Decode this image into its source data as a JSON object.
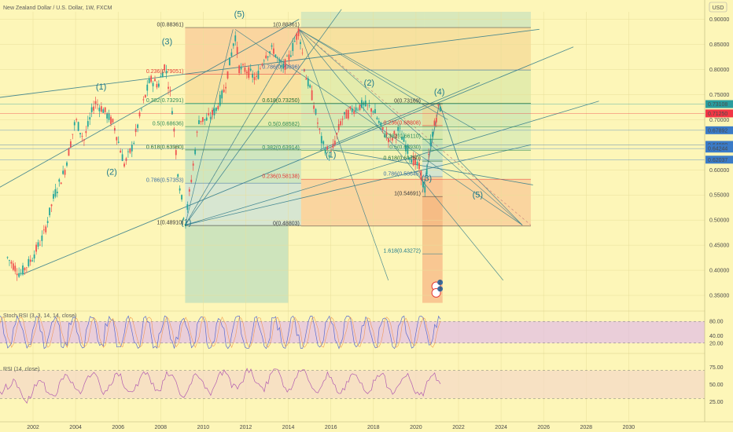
{
  "header": {
    "title": "New Zealand Dollar / U.S. Dollar, 1W, FXCM"
  },
  "currency_badge": "USD",
  "chart_data": [
    {
      "type": "candlestick-line",
      "title": "New Zealand Dollar / U.S. Dollar, 1W, FXCM",
      "x_ticks": [
        "2002",
        "2004",
        "2006",
        "2008",
        "2010",
        "2012",
        "2014",
        "2016",
        "2018",
        "2020",
        "2022",
        "2024",
        "2026",
        "2028",
        "2030"
      ],
      "y_ticks": [
        "0.90000",
        "0.85000",
        "0.80000",
        "0.75000",
        "0.70000",
        "0.65000",
        "0.60000",
        "0.55000",
        "0.50000",
        "0.45000",
        "0.40000",
        "0.35000"
      ],
      "ylim": [
        0.325,
        0.915
      ],
      "price_series": [
        [
          2000.8,
          0.425
        ],
        [
          2001.4,
          0.392
        ],
        [
          2001.9,
          0.42
        ],
        [
          2002.5,
          0.47
        ],
        [
          2003.0,
          0.55
        ],
        [
          2003.5,
          0.6
        ],
        [
          2004.0,
          0.7
        ],
        [
          2004.4,
          0.66
        ],
        [
          2004.9,
          0.735
        ],
        [
          2005.3,
          0.72
        ],
        [
          2005.8,
          0.69
        ],
        [
          2006.3,
          0.61
        ],
        [
          2006.7,
          0.65
        ],
        [
          2007.1,
          0.72
        ],
        [
          2007.5,
          0.78
        ],
        [
          2007.9,
          0.77
        ],
        [
          2008.2,
          0.81
        ],
        [
          2008.5,
          0.74
        ],
        [
          2008.8,
          0.6
        ],
        [
          2009.15,
          0.49
        ],
        [
          2009.5,
          0.6
        ],
        [
          2009.8,
          0.7
        ],
        [
          2010.2,
          0.7
        ],
        [
          2010.6,
          0.72
        ],
        [
          2011.0,
          0.76
        ],
        [
          2011.5,
          0.87
        ],
        [
          2011.7,
          0.8
        ],
        [
          2012.0,
          0.8
        ],
        [
          2012.5,
          0.78
        ],
        [
          2012.9,
          0.83
        ],
        [
          2013.3,
          0.84
        ],
        [
          2013.7,
          0.8
        ],
        [
          2014.0,
          0.82
        ],
        [
          2014.5,
          0.88
        ],
        [
          2014.8,
          0.79
        ],
        [
          2015.1,
          0.75
        ],
        [
          2015.6,
          0.65
        ],
        [
          2016.0,
          0.63
        ],
        [
          2016.5,
          0.7
        ],
        [
          2017.0,
          0.72
        ],
        [
          2017.5,
          0.73
        ],
        [
          2018.0,
          0.72
        ],
        [
          2018.4,
          0.68
        ],
        [
          2018.8,
          0.66
        ],
        [
          2019.2,
          0.68
        ],
        [
          2019.7,
          0.63
        ],
        [
          2020.2,
          0.6
        ],
        [
          2020.4,
          0.555
        ],
        [
          2020.7,
          0.66
        ],
        [
          2021.1,
          0.73
        ],
        [
          2021.2,
          0.715
        ]
      ],
      "price_labels": [
        {
          "price": 0.73108,
          "text": "0.73108",
          "color": "#2a9d9f"
        },
        {
          "price": 0.7125,
          "text": "0.71250",
          "color": "#f23645"
        },
        {
          "price": 0.67892,
          "text": "0.67892",
          "color": "#3a7bc8"
        },
        {
          "price": 0.6498,
          "text": "0.64980",
          "color": "#3a7bc8"
        },
        {
          "price": 0.64244,
          "text": "0.64244",
          "color": "#3a7bc8"
        },
        {
          "price": 0.62037,
          "text": "0.62037",
          "color": "#3a7bc8"
        }
      ],
      "wave_labels": [
        {
          "text": "(1)",
          "x": 2005.2,
          "y": 0.76
        },
        {
          "text": "(2)",
          "x": 2005.7,
          "y": 0.59
        },
        {
          "text": "(3)",
          "x": 2008.3,
          "y": 0.85
        },
        {
          "text": "(5)",
          "x": 2011.7,
          "y": 0.905
        },
        {
          "text": "(2)",
          "x": 2017.8,
          "y": 0.768
        },
        {
          "text": "(4)",
          "x": 2021.1,
          "y": 0.75
        },
        {
          "text": "(5)",
          "x": 2022.9,
          "y": 0.545
        },
        {
          "text": "(3)",
          "x": 2020.5,
          "y": 0.578
        },
        {
          "text": "(1)",
          "x": 2016.0,
          "y": 0.625
        },
        {
          "text": "(1)",
          "x": 2009.2,
          "y": 0.49
        }
      ],
      "fib_retracement_1": [
        {
          "level": 0,
          "text": "0(0.88361)",
          "price": 0.88361,
          "color": "#3b3b3b"
        },
        {
          "level": 0.236,
          "text": "0.236(0.79051)",
          "price": 0.79051,
          "color": "#e53935"
        },
        {
          "level": 0.382,
          "text": "0.382(0.73291)",
          "price": 0.73291,
          "color": "#2e8b57"
        },
        {
          "level": 0.5,
          "text": "0.5(0.68636)",
          "price": 0.68636,
          "color": "#2e8b57"
        },
        {
          "level": 0.618,
          "text": "0.618(0.63980)",
          "price": 0.6398,
          "color": "#1b6b32"
        },
        {
          "level": 0.786,
          "text": "0.786(0.57353)",
          "price": 0.57353,
          "color": "#3a6ea5"
        },
        {
          "level": 1,
          "text": "1(0.48910)",
          "price": 0.4891,
          "color": "#3b3b3b"
        }
      ],
      "fib_retracement_2": [
        {
          "text": "1(0.88361)",
          "price": 0.88361,
          "color": "#3b3b3b"
        },
        {
          "text": "0.786(0.79896)",
          "price": 0.79896,
          "color": "#3a6ea5"
        },
        {
          "text": "0.618(0.73250)",
          "price": 0.7325,
          "color": "#1b6b32"
        },
        {
          "text": "0.5(0.68582)",
          "price": 0.68582,
          "color": "#2e8b57"
        },
        {
          "text": "0.382(0.63914)",
          "price": 0.63914,
          "color": "#2e8b57"
        },
        {
          "text": "0.236(0.58138)",
          "price": 0.58138,
          "color": "#e53935"
        },
        {
          "text": "0(0.48803)",
          "price": 0.48803,
          "color": "#3b3b3b"
        }
      ],
      "fib_retracement_3": [
        {
          "text": "0(0.73169)",
          "price": 0.73169,
          "color": "#3b3b3b"
        },
        {
          "text": "0.236(0.68808)",
          "price": 0.68808,
          "color": "#e53935"
        },
        {
          "text": "0.382(0.66110)",
          "price": 0.6611,
          "color": "#2e8b57"
        },
        {
          "text": "0.5(0.63930)",
          "price": 0.6393,
          "color": "#2e8b57"
        },
        {
          "text": "0.618(0.61750)",
          "price": 0.6175,
          "color": "#1b6b32"
        },
        {
          "text": "0.786(0.58645)",
          "price": 0.58645,
          "color": "#3a6ea5"
        },
        {
          "text": "1(0.54691)",
          "price": 0.54691,
          "color": "#3b3b3b"
        },
        {
          "text": "1.618(0.43272)",
          "price": 0.43272,
          "color": "#1f7a8c"
        }
      ]
    },
    {
      "type": "line",
      "title": "Stoch RSI (3, 3, 14, 14, close)",
      "y_ticks": [
        "80.00",
        "40.00",
        "20.00"
      ],
      "ylim": [
        0,
        100
      ]
    },
    {
      "type": "line",
      "title": "RSI (14, close)",
      "y_ticks": [
        "75.00",
        "50.00",
        "25.00"
      ],
      "ylim": [
        10,
        90
      ]
    }
  ],
  "colors": {
    "background": "#fdf6b8",
    "candle_up": "#26a69a",
    "candle_down": "#ef5350",
    "trendline": "#2f7a8a",
    "rsi_line": "#b25cb0",
    "stoch_k": "#5a6bd0",
    "stoch_band": "#e1bee7"
  },
  "icons": [
    "bell-icon",
    "alert-icon"
  ],
  "alert_counts": [
    "2",
    "3"
  ]
}
